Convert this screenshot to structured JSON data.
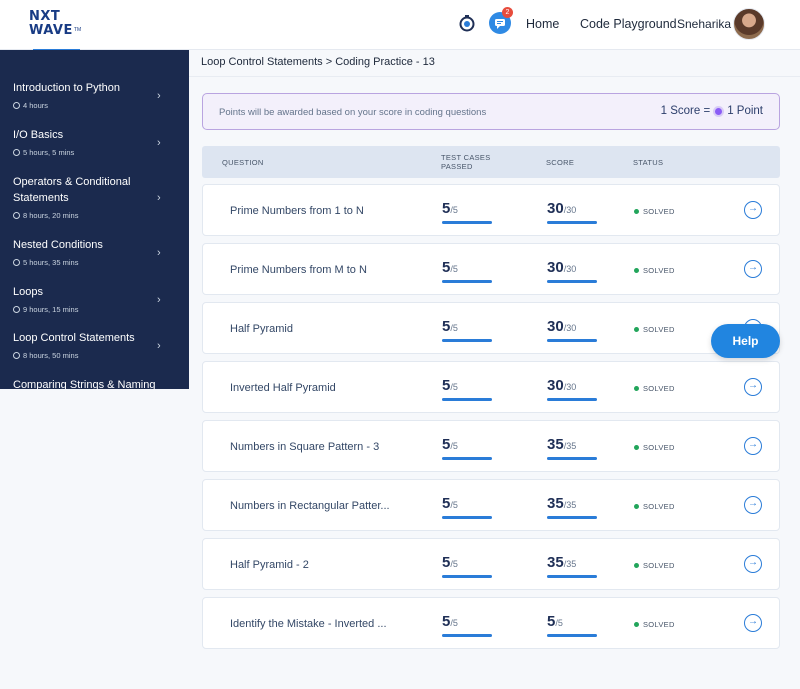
{
  "header": {
    "logo_line1": "NXT",
    "logo_line2": "WAVE",
    "logo_tm": "TM",
    "notification_count": "2",
    "nav": {
      "home": "Home",
      "code_playground": "Code Playground"
    },
    "user_name": "Sneharika",
    "icons": {
      "timer": "stopwatch-icon",
      "chat": "chat-icon"
    }
  },
  "sidebar": {
    "items": [
      {
        "title": "Introduction to Python",
        "duration": "4 hours"
      },
      {
        "title": "I/O Basics",
        "duration": "5 hours, 5 mins"
      },
      {
        "title": "Operators & Conditional Statements",
        "duration": "8 hours, 20 mins"
      },
      {
        "title": "Nested Conditions",
        "duration": "5 hours, 35 mins"
      },
      {
        "title": "Loops",
        "duration": "9 hours, 15 mins"
      },
      {
        "title": "Loop Control Statements",
        "duration": "8 hours, 50 mins"
      },
      {
        "title": "Comparing Strings & Naming",
        "duration": ""
      }
    ]
  },
  "breadcrumb": "Loop Control Statements > Coding Practice - 13",
  "banner": {
    "text": "Points will be awarded based on your score in coding questions",
    "score_left": "1 Score =",
    "score_right": "1 Point"
  },
  "table": {
    "headers": {
      "question": "QUESTION",
      "test_cases_1": "TEST CASES",
      "test_cases_2": "PASSED",
      "score": "SCORE",
      "status": "STATUS"
    },
    "rows": [
      {
        "question": "Prime Numbers from 1 to N",
        "tc": "5",
        "tc_total": "/5",
        "score": "30",
        "score_total": "/30",
        "status": "SOLVED",
        "tc_progress": 1.0,
        "score_progress": 1.0
      },
      {
        "question": "Prime Numbers from M to N",
        "tc": "5",
        "tc_total": "/5",
        "score": "30",
        "score_total": "/30",
        "status": "SOLVED",
        "tc_progress": 1.0,
        "score_progress": 1.0
      },
      {
        "question": "Half Pyramid",
        "tc": "5",
        "tc_total": "/5",
        "score": "30",
        "score_total": "/30",
        "status": "SOLVED",
        "tc_progress": 1.0,
        "score_progress": 1.0
      },
      {
        "question": "Inverted Half Pyramid",
        "tc": "5",
        "tc_total": "/5",
        "score": "30",
        "score_total": "/30",
        "status": "SOLVED",
        "tc_progress": 1.0,
        "score_progress": 1.0
      },
      {
        "question": "Numbers in Square Pattern - 3",
        "tc": "5",
        "tc_total": "/5",
        "score": "35",
        "score_total": "/35",
        "status": "SOLVED",
        "tc_progress": 1.0,
        "score_progress": 1.0
      },
      {
        "question": "Numbers in Rectangular Patter...",
        "tc": "5",
        "tc_total": "/5",
        "score": "35",
        "score_total": "/35",
        "status": "SOLVED",
        "tc_progress": 1.0,
        "score_progress": 1.0
      },
      {
        "question": "Half Pyramid - 2",
        "tc": "5",
        "tc_total": "/5",
        "score": "35",
        "score_total": "/35",
        "status": "SOLVED",
        "tc_progress": 1.0,
        "score_progress": 1.0
      },
      {
        "question": "Identify the Mistake - Inverted ...",
        "tc": "5",
        "tc_total": "/5",
        "score": "5",
        "score_total": "/5",
        "status": "SOLVED",
        "tc_progress": 1.0,
        "score_progress": 1.0
      }
    ]
  },
  "help_label": "Help",
  "colors": {
    "accent": "#2a7cd8",
    "sidebar": "#1b2a4e",
    "solved": "#22a55b"
  }
}
